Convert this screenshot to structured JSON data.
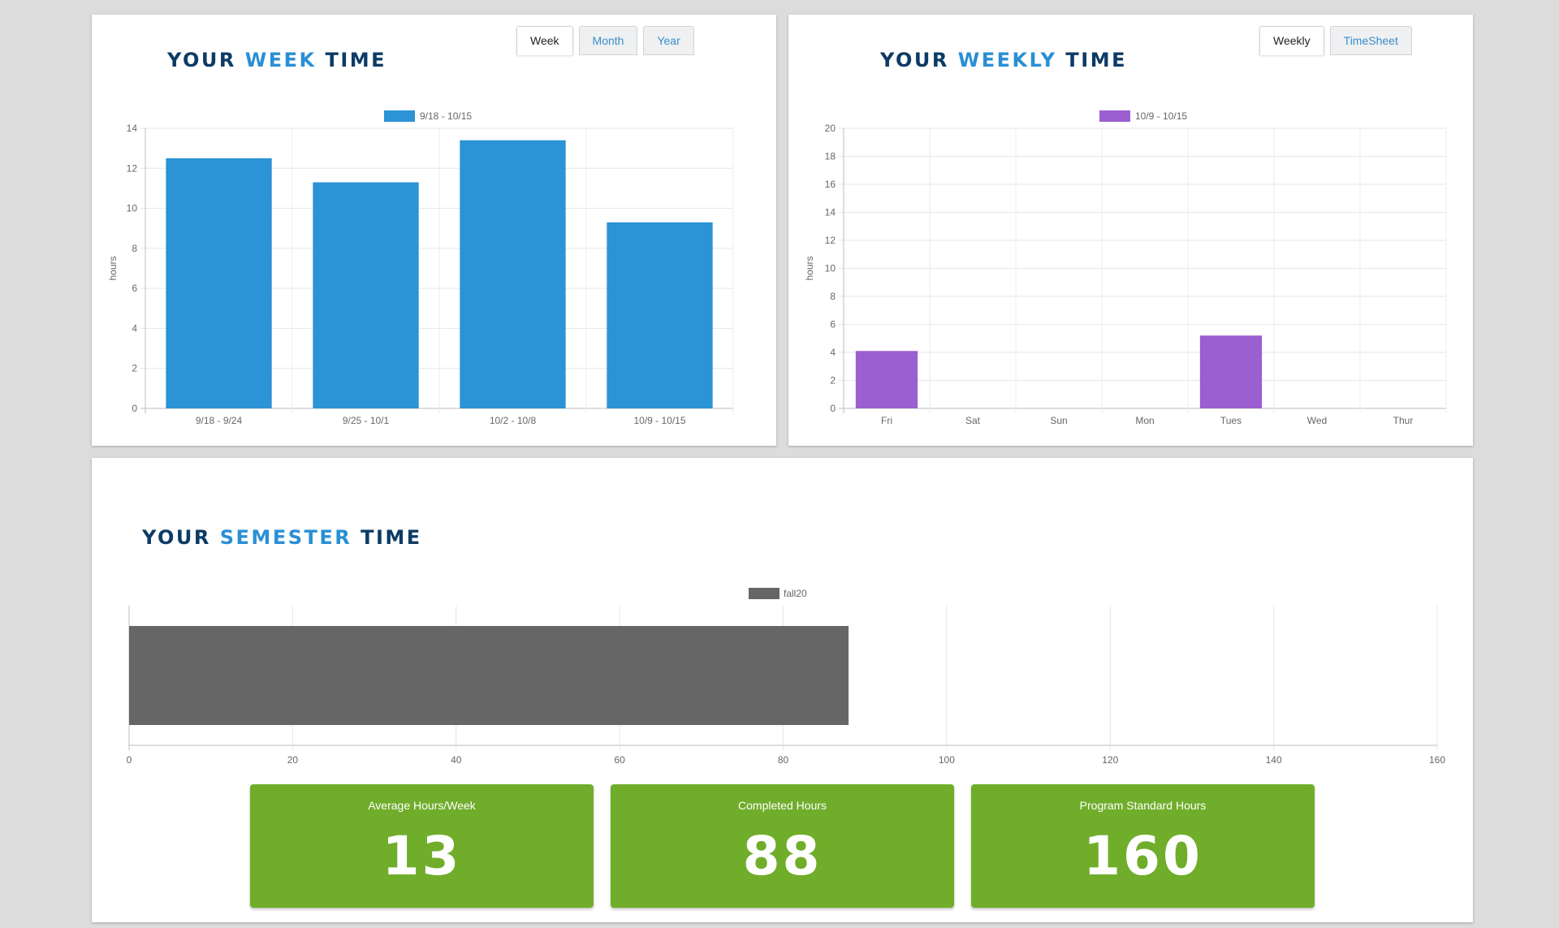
{
  "week_card": {
    "title_pre": "YOUR ",
    "title_hl": "WEEK",
    "title_post": " TIME",
    "tabs": [
      "Week",
      "Month",
      "Year"
    ],
    "active_tab": "Week"
  },
  "weekly_card": {
    "title_pre": "YOUR ",
    "title_hl": "WEEKLY",
    "title_post": " TIME",
    "tabs": [
      "Weekly",
      "TimeSheet"
    ],
    "active_tab": "Weekly"
  },
  "semester_card": {
    "title_pre": "YOUR ",
    "title_hl": "SEMESTER",
    "title_post": " TIME"
  },
  "stats": [
    {
      "label": "Average Hours/Week",
      "value": "13"
    },
    {
      "label": "Completed Hours",
      "value": "88"
    },
    {
      "label": "Program Standard Hours",
      "value": "160"
    }
  ],
  "colors": {
    "title": "#0d3b66",
    "title_highlight": "#2a8fd4",
    "week_bar": "#2b93d6",
    "weekly_bar": "#9b5fd1",
    "semester_bar": "#666666",
    "stat_box": "#70ad2b"
  },
  "chart_data": [
    {
      "type": "bar",
      "categories": [
        "9/18 - 9/24",
        "9/25 - 10/1",
        "10/2 - 10/8",
        "10/9 - 10/15"
      ],
      "series": [
        {
          "name": "9/18 - 10/15",
          "values": [
            12.5,
            11.3,
            13.4,
            9.3
          ]
        }
      ],
      "xlabel": "",
      "ylabel": "hours",
      "ylim": [
        0,
        14
      ],
      "yticks": [
        0,
        2,
        4,
        6,
        8,
        10,
        12,
        14
      ],
      "grid": true,
      "legend": "top-center"
    },
    {
      "type": "bar",
      "categories": [
        "Fri",
        "Sat",
        "Sun",
        "Mon",
        "Tues",
        "Wed",
        "Thur"
      ],
      "series": [
        {
          "name": "10/9 - 10/15",
          "values": [
            4.1,
            0,
            0,
            0,
            5.2,
            0,
            0
          ]
        }
      ],
      "xlabel": "",
      "ylabel": "hours",
      "ylim": [
        0,
        20
      ],
      "yticks": [
        0,
        2,
        4,
        6,
        8,
        10,
        12,
        14,
        16,
        18,
        20
      ],
      "grid": true,
      "legend": "top-center"
    },
    {
      "type": "bar",
      "orientation": "horizontal",
      "categories": [
        ""
      ],
      "series": [
        {
          "name": "fall20",
          "values": [
            88
          ]
        }
      ],
      "xlim": [
        0,
        160
      ],
      "xticks": [
        0,
        20,
        40,
        60,
        80,
        100,
        120,
        140,
        160
      ],
      "grid": true,
      "legend": "top-center"
    }
  ]
}
